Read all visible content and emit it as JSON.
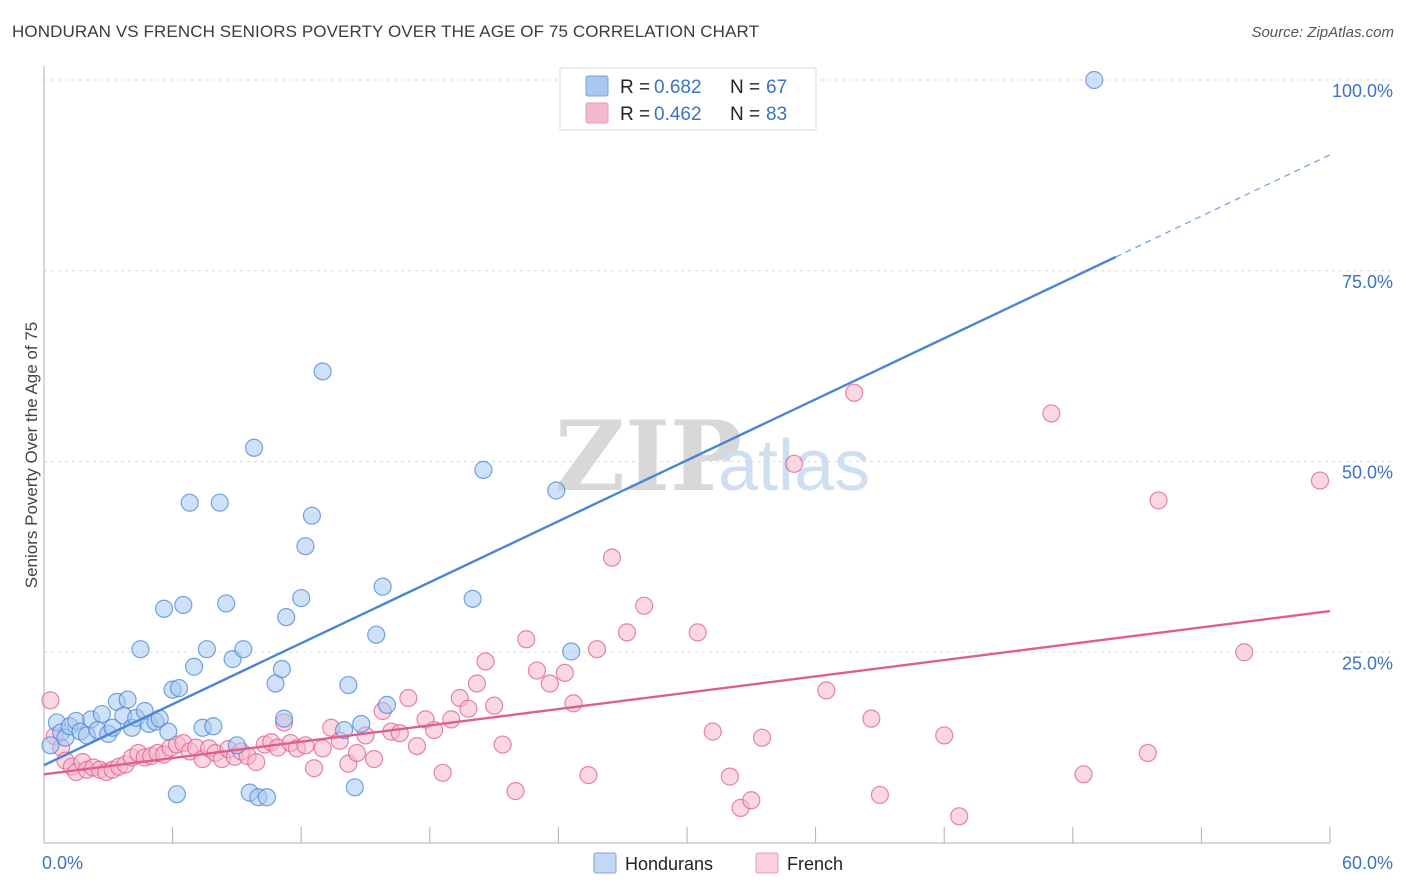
{
  "header": {
    "title": "HONDURAN VS FRENCH SENIORS POVERTY OVER THE AGE OF 75 CORRELATION CHART",
    "source": "Source: ZipAtlas.com"
  },
  "watermark": {
    "part1": "ZIP",
    "part2": "atlas"
  },
  "legend": {
    "rows": [
      {
        "r_label": "R = ",
        "r_value": "0.682",
        "n_label": "N = ",
        "n_value": "67",
        "color": "#a8c8f0"
      },
      {
        "r_label": "R = ",
        "r_value": "0.462",
        "n_label": "N = ",
        "n_value": "83",
        "color": "#f6b8cc"
      }
    ]
  },
  "chart_data": {
    "type": "scatter",
    "title": "HONDURAN VS FRENCH SENIORS POVERTY OVER THE AGE OF 75 CORRELATION CHART",
    "xlabel": "",
    "ylabel": "Seniors Poverty Over the Age of 75",
    "xlim": [
      0,
      60
    ],
    "ylim": [
      0,
      100
    ],
    "x_tick_labels": [
      "0.0%",
      "60.0%"
    ],
    "y_ticks": [
      25,
      50,
      75,
      100
    ],
    "y_tick_labels": [
      "25.0%",
      "50.0%",
      "75.0%",
      "100.0%"
    ],
    "grid": "horizontal dashed",
    "legend_position": "top-center",
    "series": [
      {
        "name": "Hondurans",
        "color": "#4a86d8",
        "fill": "#a8c8f0",
        "trendline": {
          "x0": 0,
          "y0": 10.2,
          "x1": 50,
          "y1": 76.8,
          "dashed_to_x": 60,
          "dashed_to_y": 90.2
        },
        "points": [
          [
            0.3,
            12.8
          ],
          [
            0.6,
            15.8
          ],
          [
            0.8,
            14.5
          ],
          [
            1.0,
            13.8
          ],
          [
            1.2,
            15.3
          ],
          [
            1.5,
            16.0
          ],
          [
            1.7,
            14.6
          ],
          [
            2.0,
            14.1
          ],
          [
            2.2,
            16.2
          ],
          [
            2.5,
            14.8
          ],
          [
            2.7,
            16.9
          ],
          [
            3.0,
            14.3
          ],
          [
            3.2,
            15.1
          ],
          [
            3.4,
            18.5
          ],
          [
            3.7,
            16.7
          ],
          [
            3.9,
            18.8
          ],
          [
            4.1,
            15.1
          ],
          [
            4.3,
            16.4
          ],
          [
            4.5,
            25.4
          ],
          [
            4.7,
            17.3
          ],
          [
            4.9,
            15.6
          ],
          [
            5.2,
            15.9
          ],
          [
            5.4,
            16.3
          ],
          [
            5.6,
            30.7
          ],
          [
            5.8,
            14.6
          ],
          [
            6.0,
            20.1
          ],
          [
            6.2,
            6.4
          ],
          [
            6.3,
            20.3
          ],
          [
            6.5,
            31.2
          ],
          [
            6.8,
            44.6
          ],
          [
            7.0,
            23.1
          ],
          [
            7.4,
            15.1
          ],
          [
            7.6,
            25.4
          ],
          [
            7.9,
            15.3
          ],
          [
            8.2,
            44.6
          ],
          [
            8.5,
            31.4
          ],
          [
            8.8,
            24.1
          ],
          [
            9.0,
            12.8
          ],
          [
            9.3,
            25.4
          ],
          [
            9.6,
            6.6
          ],
          [
            9.8,
            51.8
          ],
          [
            10.0,
            6.0
          ],
          [
            10.4,
            6.0
          ],
          [
            10.8,
            20.9
          ],
          [
            11.1,
            22.8
          ],
          [
            11.2,
            16.3
          ],
          [
            11.3,
            29.6
          ],
          [
            12.0,
            32.1
          ],
          [
            12.2,
            38.9
          ],
          [
            12.5,
            42.9
          ],
          [
            13.0,
            61.8
          ],
          [
            14.0,
            14.8
          ],
          [
            14.2,
            20.7
          ],
          [
            14.5,
            7.3
          ],
          [
            14.8,
            15.6
          ],
          [
            15.5,
            27.3
          ],
          [
            15.8,
            33.6
          ],
          [
            16.0,
            18.1
          ],
          [
            20.0,
            32.0
          ],
          [
            20.5,
            48.9
          ],
          [
            23.9,
            46.2
          ],
          [
            24.6,
            25.1
          ],
          [
            49.0,
            100.0
          ]
        ]
      },
      {
        "name": "French",
        "color": "#e05d8e",
        "fill": "#f6b8cc",
        "trendline": {
          "x0": 0,
          "y0": 9.0,
          "x1": 60,
          "y1": 30.4
        },
        "points": [
          [
            0.3,
            18.7
          ],
          [
            0.5,
            14.0
          ],
          [
            0.8,
            12.5
          ],
          [
            1.0,
            10.8
          ],
          [
            1.3,
            10.0
          ],
          [
            1.5,
            9.3
          ],
          [
            1.8,
            10.6
          ],
          [
            2.0,
            9.6
          ],
          [
            2.3,
            9.9
          ],
          [
            2.6,
            9.6
          ],
          [
            2.9,
            9.3
          ],
          [
            3.2,
            9.6
          ],
          [
            3.5,
            10.0
          ],
          [
            3.8,
            10.3
          ],
          [
            4.1,
            11.2
          ],
          [
            4.4,
            11.8
          ],
          [
            4.7,
            11.2
          ],
          [
            5.0,
            11.4
          ],
          [
            5.3,
            11.8
          ],
          [
            5.6,
            11.6
          ],
          [
            5.9,
            12.5
          ],
          [
            6.2,
            12.9
          ],
          [
            6.5,
            13.1
          ],
          [
            6.8,
            12.0
          ],
          [
            7.1,
            12.5
          ],
          [
            7.4,
            11.0
          ],
          [
            7.7,
            12.4
          ],
          [
            8.0,
            11.8
          ],
          [
            8.3,
            11.0
          ],
          [
            8.6,
            12.3
          ],
          [
            8.9,
            11.3
          ],
          [
            9.2,
            12.0
          ],
          [
            9.5,
            11.4
          ],
          [
            9.9,
            10.6
          ],
          [
            10.3,
            12.9
          ],
          [
            10.6,
            13.2
          ],
          [
            10.9,
            12.5
          ],
          [
            11.2,
            15.8
          ],
          [
            11.5,
            13.1
          ],
          [
            11.8,
            12.4
          ],
          [
            12.2,
            12.8
          ],
          [
            12.6,
            9.8
          ],
          [
            13.0,
            12.4
          ],
          [
            13.4,
            15.1
          ],
          [
            13.8,
            13.4
          ],
          [
            14.2,
            10.4
          ],
          [
            14.6,
            11.8
          ],
          [
            15.0,
            14.1
          ],
          [
            15.4,
            11.0
          ],
          [
            15.8,
            17.3
          ],
          [
            16.2,
            14.6
          ],
          [
            16.6,
            14.4
          ],
          [
            17.0,
            19.0
          ],
          [
            17.4,
            12.7
          ],
          [
            17.8,
            16.2
          ],
          [
            18.2,
            14.8
          ],
          [
            18.6,
            9.2
          ],
          [
            19.0,
            16.2
          ],
          [
            19.4,
            19.0
          ],
          [
            19.8,
            17.6
          ],
          [
            20.2,
            20.9
          ],
          [
            20.6,
            23.8
          ],
          [
            21.0,
            18.0
          ],
          [
            21.4,
            12.9
          ],
          [
            22.0,
            6.8
          ],
          [
            22.5,
            26.7
          ],
          [
            23.0,
            22.6
          ],
          [
            23.6,
            20.9
          ],
          [
            24.3,
            22.3
          ],
          [
            24.7,
            18.3
          ],
          [
            25.4,
            8.9
          ],
          [
            25.8,
            25.4
          ],
          [
            26.5,
            37.4
          ],
          [
            27.2,
            27.6
          ],
          [
            28.0,
            31.1
          ],
          [
            30.5,
            27.6
          ],
          [
            31.2,
            14.6
          ],
          [
            32.0,
            8.7
          ],
          [
            32.5,
            4.6
          ],
          [
            33.0,
            5.6
          ],
          [
            33.5,
            13.8
          ],
          [
            35.0,
            49.7
          ],
          [
            36.5,
            20.0
          ],
          [
            37.8,
            59.0
          ],
          [
            38.6,
            16.3
          ],
          [
            39.0,
            6.3
          ],
          [
            42.0,
            14.1
          ],
          [
            42.7,
            3.5
          ],
          [
            47.0,
            56.3
          ],
          [
            48.5,
            9.0
          ],
          [
            51.5,
            11.8
          ],
          [
            52.0,
            44.9
          ],
          [
            56.0,
            25.0
          ],
          [
            60.5,
            47.5
          ]
        ]
      }
    ]
  },
  "bottom_legend": {
    "items": [
      {
        "label": "Hondurans"
      },
      {
        "label": "French"
      }
    ]
  }
}
